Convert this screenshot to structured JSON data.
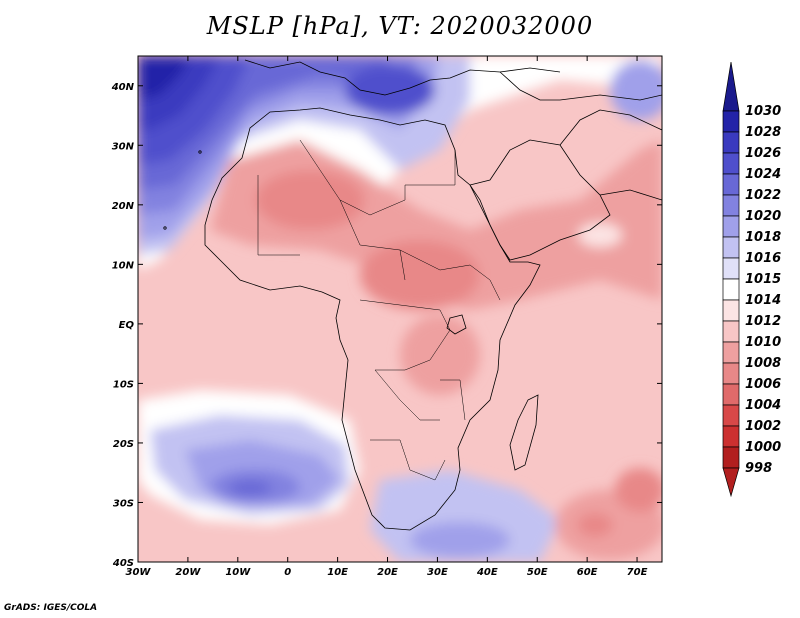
{
  "title": "MSLP [hPa], VT: 2020032000",
  "footer": "GrADS: IGES/COLA",
  "map": {
    "variable": "MSLP",
    "units": "hPa",
    "valid_time": "2020032000",
    "lon_ticks": [
      "30W",
      "20W",
      "10W",
      "0",
      "10E",
      "20E",
      "30E",
      "40E",
      "50E",
      "60E",
      "70E"
    ],
    "lat_ticks": [
      "40N",
      "30N",
      "20N",
      "10N",
      "EQ",
      "10S",
      "20S",
      "30S",
      "40S"
    ],
    "lon_values": [
      -30,
      -20,
      -10,
      0,
      10,
      20,
      30,
      40,
      50,
      60,
      70
    ],
    "lat_values": [
      40,
      30,
      20,
      10,
      0,
      -10,
      -20,
      -30,
      -40
    ],
    "lon_range": [
      -30,
      75
    ],
    "lat_range": [
      -40,
      45
    ]
  },
  "colorbar": {
    "levels": [
      "1030",
      "1028",
      "1026",
      "1024",
      "1022",
      "1020",
      "1018",
      "1016",
      "1015",
      "1014",
      "1012",
      "1010",
      "1008",
      "1006",
      "1004",
      "1002",
      "1000",
      "998"
    ],
    "colors": [
      "#1a1a8c",
      "#2323a8",
      "#3a3abf",
      "#4f4fcc",
      "#6868d6",
      "#8282e0",
      "#a0a0ea",
      "#c2c2f2",
      "#e0e0f8",
      "#ffffff",
      "#fce4e4",
      "#f8c6c6",
      "#eea0a0",
      "#e88888",
      "#e06a6a",
      "#d84848",
      "#cc3030",
      "#b21f1f"
    ]
  }
}
